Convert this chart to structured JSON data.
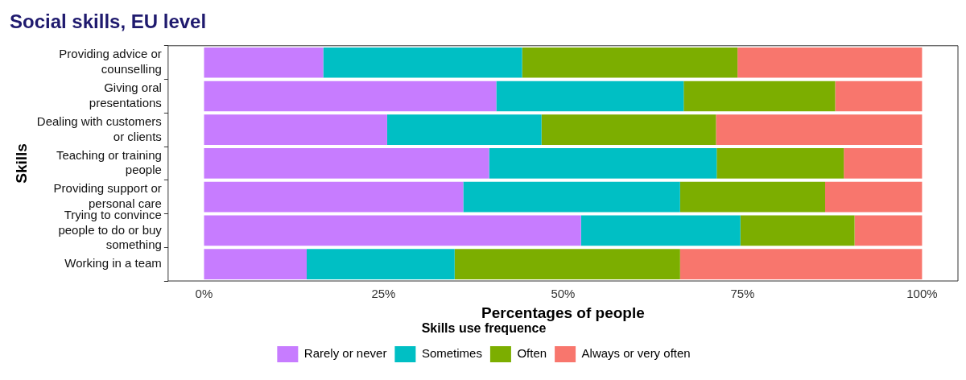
{
  "chart_data": {
    "type": "bar",
    "orientation": "horizontal",
    "stacked": true,
    "title": "Social skills, EU level",
    "xlabel": "Percentages of people",
    "ylabel": "Skills",
    "legend_title": "Skills use frequence",
    "legend": "bottom",
    "grid": false,
    "categories": [
      "Providing advice or counselling",
      "Giving oral presentations",
      "Dealing with customers or clients",
      "Teaching or training people",
      "Providing support or personal care",
      "Trying to convince people to do or buy something",
      "Working in a team"
    ],
    "series": [
      {
        "name": "Rarely or never",
        "color": "#c77cff",
        "values": [
          16.6,
          40.7,
          25.5,
          39.7,
          36.1,
          52.5,
          14.3
        ]
      },
      {
        "name": "Sometimes",
        "color": "#00bfc4",
        "values": [
          27.7,
          26.1,
          21.5,
          31.7,
          30.2,
          22.2,
          20.6
        ]
      },
      {
        "name": "Often",
        "color": "#7cae00",
        "values": [
          30.0,
          21.1,
          24.3,
          17.7,
          20.2,
          15.9,
          31.4
        ]
      },
      {
        "name": "Always or very often",
        "color": "#f8766d",
        "values": [
          25.7,
          12.1,
          28.7,
          10.9,
          13.5,
          9.4,
          33.7
        ]
      }
    ],
    "xlim": [
      -5,
      105
    ],
    "xticks": [
      {
        "value": 0,
        "label": "0%"
      },
      {
        "value": 25,
        "label": "25%"
      },
      {
        "value": 50,
        "label": "50%"
      },
      {
        "value": 75,
        "label": "75%"
      },
      {
        "value": 100,
        "label": "100%"
      }
    ]
  }
}
